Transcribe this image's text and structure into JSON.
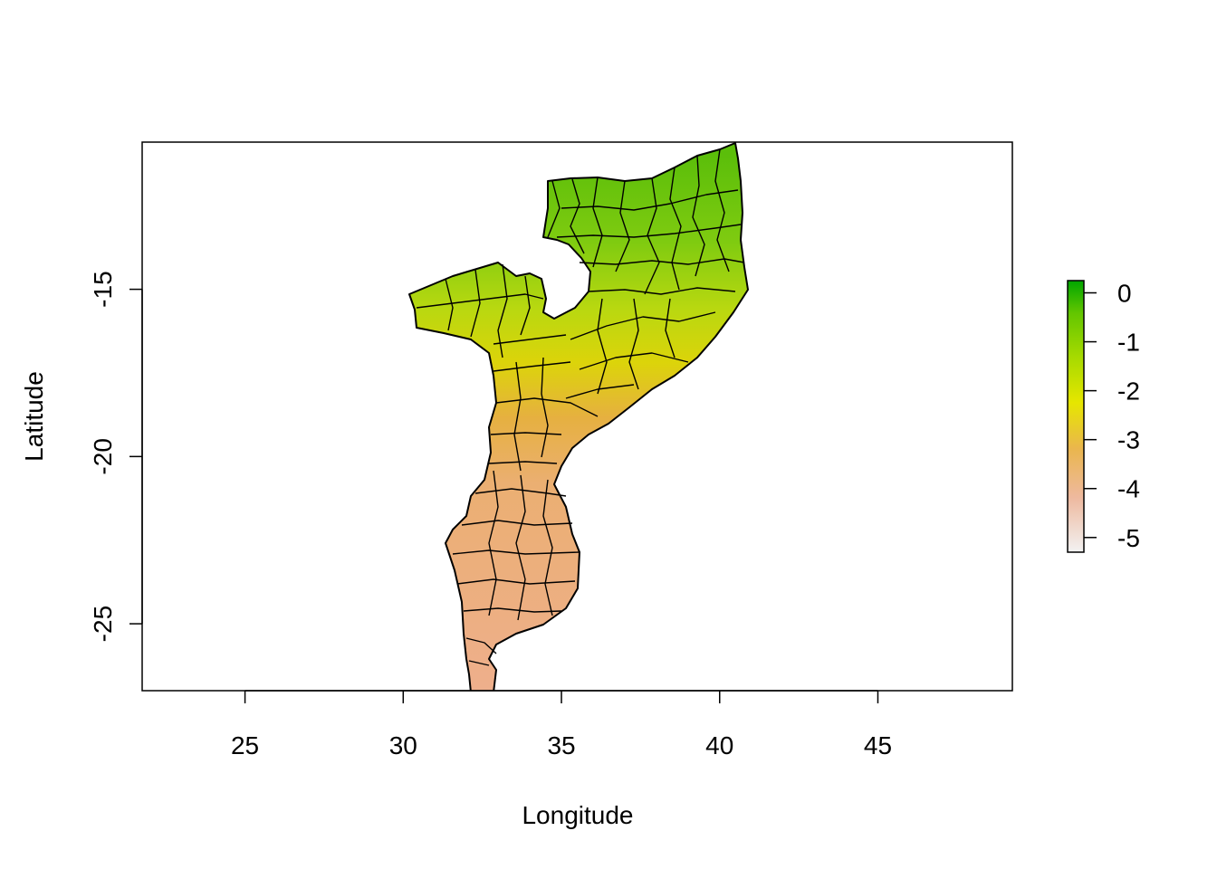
{
  "chart_data": {
    "type": "heatmap",
    "title": "",
    "xlabel": "Longitude",
    "ylabel": "Latitude",
    "xlim": [
      21.75,
      49.25
    ],
    "ylim": [
      -27.0,
      -10.6
    ],
    "xticks": [
      {
        "value": 25,
        "label": "25"
      },
      {
        "value": 30,
        "label": "30"
      },
      {
        "value": 35,
        "label": "35"
      },
      {
        "value": 40,
        "label": "40"
      },
      {
        "value": 45,
        "label": "45"
      }
    ],
    "yticks": [
      {
        "value": -15,
        "label": "-15"
      },
      {
        "value": -20,
        "label": "-20"
      },
      {
        "value": -25,
        "label": "-25"
      }
    ],
    "legend": {
      "placement": "right",
      "range": [
        -5.3,
        0.25
      ],
      "ticks": [
        {
          "value": 0,
          "label": "0"
        },
        {
          "value": -1,
          "label": "-1"
        },
        {
          "value": -2,
          "label": "-2"
        },
        {
          "value": -3,
          "label": "-3"
        },
        {
          "value": -4,
          "label": "-4"
        },
        {
          "value": -5,
          "label": "-5"
        }
      ],
      "colors": [
        "#F2F2F2",
        "#EEB99F",
        "#EAB64E",
        "#E6E600",
        "#A6DA00",
        "#63C600",
        "#00A600"
      ]
    },
    "grid": false
  }
}
